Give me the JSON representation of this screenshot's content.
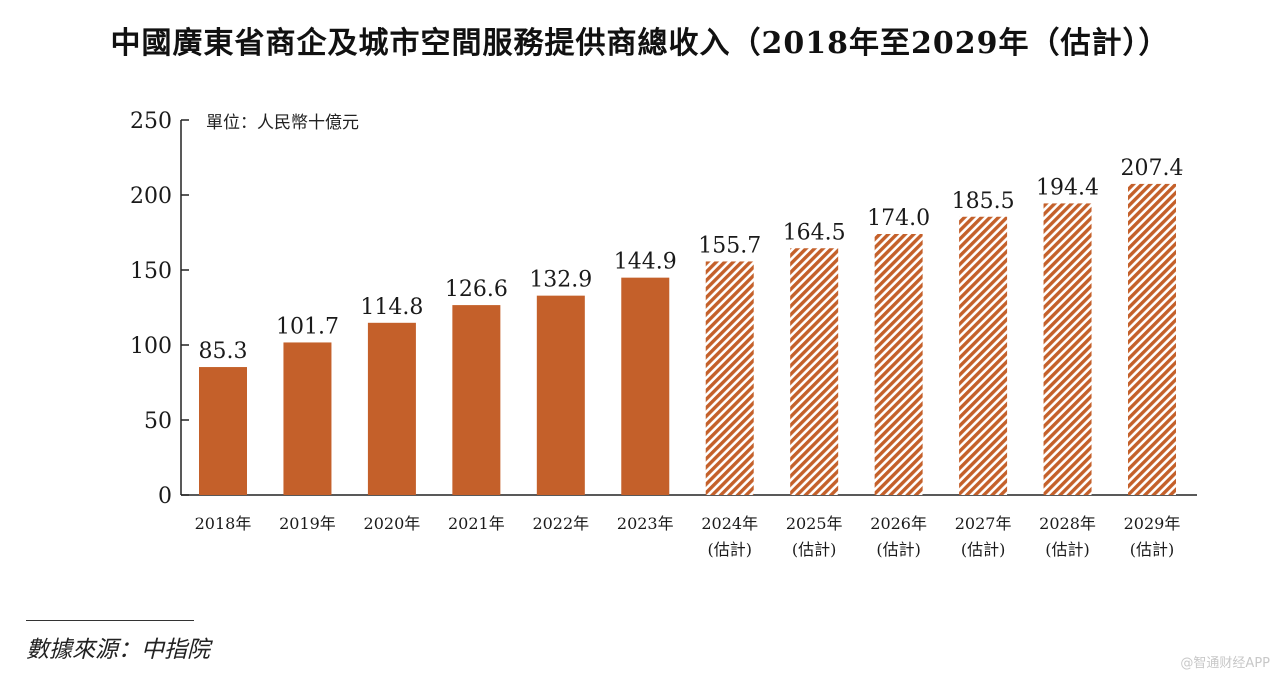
{
  "title": "中國廣東省商企及城市空間服務提供商總收入（2018年至2029年（估計））",
  "source": "數據來源：中指院",
  "watermark": "@智通财经APP",
  "colors": {
    "bar": "#c4602a",
    "axis": "#222222"
  },
  "chart_data": {
    "type": "bar",
    "unit_label": "單位：人民幣十億元",
    "categories": [
      "2018年",
      "2019年",
      "2020年",
      "2021年",
      "2022年",
      "2023年",
      "2024年",
      "2025年",
      "2026年",
      "2027年",
      "2028年",
      "2029年"
    ],
    "category_sublabels": [
      "",
      "",
      "",
      "",
      "",
      "",
      "(估計)",
      "(估計)",
      "(估計)",
      "(估計)",
      "(估計)",
      "(估計)"
    ],
    "values": [
      85.3,
      101.7,
      114.8,
      126.6,
      132.9,
      144.9,
      155.7,
      164.5,
      174.0,
      185.5,
      194.4,
      207.4
    ],
    "value_labels": [
      "85.3",
      "101.7",
      "114.8",
      "126.6",
      "132.9",
      "144.9",
      "155.7",
      "164.5",
      "174.0",
      "185.5",
      "194.4",
      "207.4"
    ],
    "estimated": [
      false,
      false,
      false,
      false,
      false,
      false,
      true,
      true,
      true,
      true,
      true,
      true
    ],
    "ylim": [
      0,
      250
    ],
    "yticks": [
      0,
      50,
      100,
      150,
      200,
      250
    ],
    "ytick_labels": [
      "0",
      "50",
      "100",
      "150",
      "200",
      "250"
    ]
  }
}
